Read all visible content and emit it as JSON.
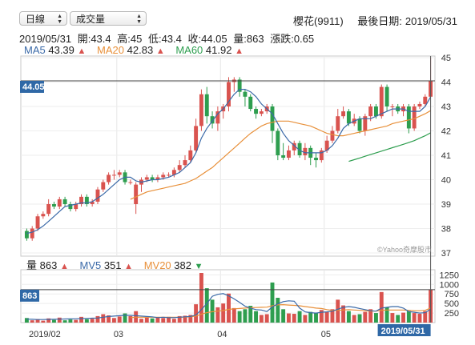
{
  "controls": {
    "period": "日線",
    "indicator": "成交量"
  },
  "header": {
    "stock": "櫻花(9911)",
    "last_date_label": "最後日期:",
    "last_date": "2019/05/31"
  },
  "ohlc": {
    "date": "2019/05/31",
    "open": "開:43.4",
    "high": "高:45",
    "low": "低:43.4",
    "close": "收:44.05",
    "volume": "量:863",
    "change": "漲跌:0.65"
  },
  "ma_legend": [
    {
      "name": "MA5",
      "value": "43.39",
      "color": "#3b6aa8"
    },
    {
      "name": "MA20",
      "value": "42.83",
      "color": "#e8903a"
    },
    {
      "name": "MA60",
      "value": "41.92",
      "color": "#2e9e4f"
    }
  ],
  "vol_legend": {
    "label": "量",
    "value": "863",
    "mv5_name": "MV5",
    "mv5_value": "351",
    "mv20_name": "MV20",
    "mv20_value": "382"
  },
  "watermark": "©Yahoo奇摩股市",
  "current_price_label": "44.05",
  "current_volume_label": "863",
  "cursor_date_label": "2019/05/31",
  "colors": {
    "up": "#d9534f",
    "down": "#2e9e4f",
    "ma5": "#3b6aa8",
    "ma20": "#e8903a",
    "ma60": "#2e9e4f",
    "label_bg": "#2f68a6"
  },
  "chart_data": {
    "type": "candlestick",
    "price_axis": {
      "ticks": [
        "37",
        "38",
        "39",
        "40",
        "41",
        "42",
        "43",
        "44",
        "45"
      ],
      "range": [
        37,
        45
      ]
    },
    "volume_axis": {
      "ticks": [
        "250",
        "500",
        "750",
        "1000",
        "1250"
      ],
      "range": [
        0,
        1300
      ]
    },
    "x_ticks": [
      {
        "label": "2019/02",
        "index": 0
      },
      {
        "label": "03",
        "index": 17
      },
      {
        "label": "04",
        "index": 36
      },
      {
        "label": "05",
        "index": 55
      }
    ],
    "candles": [
      [
        37.9,
        37.6,
        38.0,
        37.5
      ],
      [
        37.6,
        38.0,
        38.1,
        37.5
      ],
      [
        38.0,
        38.5,
        38.6,
        37.9
      ],
      [
        38.5,
        38.6,
        38.7,
        38.4
      ],
      [
        38.6,
        39.0,
        39.2,
        38.5
      ],
      [
        39.0,
        38.9,
        39.1,
        38.8
      ],
      [
        38.9,
        39.2,
        39.3,
        38.8
      ],
      [
        39.2,
        39.0,
        39.3,
        38.9
      ],
      [
        39.0,
        38.8,
        39.1,
        38.7
      ],
      [
        38.8,
        39.0,
        39.1,
        38.7
      ],
      [
        39.0,
        39.3,
        39.4,
        38.9
      ],
      [
        39.3,
        39.0,
        39.4,
        38.9
      ],
      [
        39.0,
        39.1,
        39.2,
        38.9
      ],
      [
        39.1,
        39.6,
        39.7,
        39.0
      ],
      [
        39.6,
        39.9,
        40.0,
        39.5
      ],
      [
        39.9,
        40.2,
        40.3,
        39.8
      ],
      [
        40.2,
        40.2,
        40.4,
        40.0
      ],
      [
        40.2,
        40.3,
        40.4,
        40.1
      ],
      [
        40.3,
        39.9,
        40.4,
        39.8
      ],
      [
        39.9,
        39.9,
        40.0,
        39.8
      ],
      [
        39.0,
        39.8,
        39.9,
        38.6
      ],
      [
        39.8,
        40.0,
        40.1,
        39.5
      ],
      [
        40.0,
        40.1,
        40.2,
        39.9
      ],
      [
        40.1,
        40.0,
        40.2,
        39.9
      ],
      [
        40.0,
        40.1,
        40.2,
        39.9
      ],
      [
        40.1,
        40.2,
        40.3,
        40.0
      ],
      [
        40.2,
        40.2,
        40.3,
        40.1
      ],
      [
        40.2,
        40.4,
        40.5,
        40.1
      ],
      [
        40.4,
        40.6,
        40.8,
        40.3
      ],
      [
        40.6,
        40.8,
        41.0,
        40.5
      ],
      [
        40.8,
        41.2,
        41.4,
        40.7
      ],
      [
        41.2,
        42.2,
        42.5,
        41.1
      ],
      [
        42.2,
        43.5,
        43.7,
        42.0
      ],
      [
        43.5,
        42.6,
        43.8,
        42.3
      ],
      [
        42.6,
        42.3,
        42.8,
        42.1
      ],
      [
        42.3,
        42.8,
        43.0,
        42.0
      ],
      [
        42.8,
        43.0,
        43.1,
        42.5
      ],
      [
        43.0,
        44.0,
        44.2,
        42.8
      ],
      [
        44.0,
        44.1,
        44.2,
        43.6
      ],
      [
        44.1,
        43.6,
        44.2,
        43.4
      ],
      [
        43.6,
        43.4,
        43.7,
        43.0
      ],
      [
        43.4,
        42.9,
        43.5,
        42.8
      ],
      [
        42.9,
        42.7,
        43.0,
        42.5
      ],
      [
        42.7,
        42.8,
        42.9,
        42.6
      ],
      [
        42.8,
        43.0,
        43.1,
        42.7
      ],
      [
        43.0,
        42.0,
        43.1,
        41.5
      ],
      [
        42.0,
        41.0,
        42.1,
        40.8
      ],
      [
        41.0,
        40.9,
        41.5,
        40.8
      ],
      [
        40.9,
        41.2,
        41.4,
        40.8
      ],
      [
        41.2,
        41.5,
        41.6,
        41.0
      ],
      [
        41.5,
        41.0,
        41.6,
        40.9
      ],
      [
        41.0,
        41.3,
        41.5,
        40.8
      ],
      [
        41.3,
        40.9,
        41.4,
        40.6
      ],
      [
        40.9,
        40.8,
        41.1,
        40.5
      ],
      [
        40.8,
        41.2,
        41.3,
        40.7
      ],
      [
        41.2,
        41.6,
        41.8,
        41.1
      ],
      [
        41.6,
        42.0,
        42.2,
        41.5
      ],
      [
        42.0,
        42.6,
        42.9,
        41.9
      ],
      [
        42.6,
        42.8,
        43.0,
        42.5
      ],
      [
        42.8,
        42.3,
        42.9,
        42.2
      ],
      [
        42.3,
        42.5,
        42.7,
        42.2
      ],
      [
        42.5,
        42.0,
        42.6,
        41.9
      ],
      [
        42.0,
        42.6,
        42.7,
        41.8
      ],
      [
        42.6,
        43.0,
        43.1,
        42.4
      ],
      [
        43.0,
        42.6,
        43.1,
        42.5
      ],
      [
        42.6,
        43.8,
        43.9,
        42.5
      ],
      [
        43.8,
        43.0,
        43.9,
        42.8
      ],
      [
        43.0,
        43.0,
        43.1,
        42.6
      ],
      [
        43.0,
        42.8,
        43.1,
        42.7
      ],
      [
        42.8,
        43.0,
        43.1,
        42.6
      ],
      [
        43.0,
        42.1,
        43.1,
        41.9
      ],
      [
        42.1,
        43.0,
        43.1,
        42.0
      ],
      [
        43.0,
        43.1,
        43.2,
        42.9
      ],
      [
        43.1,
        43.4,
        43.5,
        43.0
      ],
      [
        43.4,
        44.05,
        45.0,
        43.4
      ]
    ],
    "volumes": [
      120,
      60,
      90,
      50,
      110,
      70,
      130,
      60,
      80,
      70,
      150,
      90,
      100,
      170,
      220,
      190,
      120,
      160,
      240,
      170,
      300,
      100,
      130,
      110,
      140,
      120,
      150,
      100,
      170,
      180,
      200,
      480,
      1300,
      900,
      600,
      400,
      500,
      760,
      380,
      300,
      350,
      440,
      300,
      200,
      220,
      1050,
      650,
      350,
      240,
      230,
      300,
      200,
      280,
      250,
      330,
      280,
      350,
      600,
      450,
      300,
      200,
      220,
      280,
      350,
      250,
      800,
      400,
      250,
      200,
      260,
      300,
      250,
      230,
      300,
      863
    ],
    "ma5": [
      37.8,
      37.85,
      37.95,
      38.1,
      38.3,
      38.5,
      38.7,
      38.9,
      38.95,
      39.0,
      39.05,
      39.05,
      39.1,
      39.25,
      39.4,
      39.6,
      39.8,
      40.0,
      40.1,
      40.1,
      39.95,
      39.9,
      39.95,
      40.0,
      40.0,
      40.05,
      40.1,
      40.2,
      40.3,
      40.5,
      40.7,
      41.1,
      41.7,
      42.1,
      42.4,
      42.7,
      42.9,
      43.2,
      43.5,
      43.7,
      43.7,
      43.6,
      43.4,
      43.1,
      42.9,
      42.7,
      42.3,
      41.9,
      41.6,
      41.4,
      41.2,
      41.1,
      41.1,
      41.1,
      41.1,
      41.2,
      41.4,
      41.7,
      42.1,
      42.3,
      42.4,
      42.5,
      42.5,
      42.5,
      42.6,
      42.7,
      42.8,
      42.9,
      42.9,
      42.9,
      42.8,
      42.8,
      42.8,
      43.0,
      43.39
    ],
    "ma20": [
      null,
      null,
      null,
      null,
      null,
      null,
      null,
      null,
      null,
      null,
      null,
      null,
      null,
      null,
      null,
      null,
      null,
      null,
      null,
      39.2,
      39.3,
      39.4,
      39.5,
      39.55,
      39.6,
      39.65,
      39.7,
      39.75,
      39.8,
      39.85,
      39.95,
      40.05,
      40.2,
      40.35,
      40.5,
      40.7,
      40.9,
      41.1,
      41.3,
      41.5,
      41.7,
      41.9,
      42.05,
      42.2,
      42.3,
      42.35,
      42.4,
      42.4,
      42.4,
      42.35,
      42.3,
      42.25,
      42.2,
      42.1,
      42.0,
      41.9,
      41.85,
      41.8,
      41.8,
      41.85,
      41.9,
      41.95,
      42.0,
      42.05,
      42.1,
      42.15,
      42.2,
      42.3,
      42.35,
      42.4,
      42.45,
      42.5,
      42.6,
      42.7,
      42.83
    ],
    "ma60": [
      null,
      null,
      null,
      null,
      null,
      null,
      null,
      null,
      null,
      null,
      null,
      null,
      null,
      null,
      null,
      null,
      null,
      null,
      null,
      null,
      null,
      null,
      null,
      null,
      null,
      null,
      null,
      null,
      null,
      null,
      null,
      null,
      null,
      null,
      null,
      null,
      null,
      null,
      null,
      null,
      null,
      null,
      null,
      null,
      null,
      null,
      null,
      null,
      null,
      null,
      null,
      null,
      null,
      null,
      null,
      null,
      null,
      null,
      null,
      40.75,
      40.82,
      40.89,
      40.96,
      41.03,
      41.1,
      41.17,
      41.24,
      41.31,
      41.38,
      41.45,
      41.52,
      41.6,
      41.7,
      41.8,
      41.92
    ],
    "mv5": [
      90,
      85,
      80,
      80,
      84,
      86,
      90,
      94,
      96,
      98,
      104,
      110,
      116,
      120,
      140,
      160,
      170,
      180,
      190,
      190,
      180,
      170,
      160,
      150,
      130,
      140,
      130,
      130,
      140,
      150,
      160,
      200,
      340,
      500,
      690,
      740,
      760,
      700,
      620,
      530,
      430,
      380,
      340,
      330,
      290,
      410,
      490,
      550,
      570,
      560,
      380,
      280,
      260,
      250,
      270,
      280,
      300,
      350,
      400,
      420,
      400,
      370,
      340,
      310,
      300,
      380,
      400,
      420,
      420,
      380,
      290,
      270,
      250,
      260,
      351
    ],
    "mv20": [
      null,
      null,
      null,
      null,
      null,
      null,
      null,
      null,
      null,
      null,
      null,
      null,
      null,
      null,
      null,
      null,
      null,
      null,
      null,
      130,
      140,
      140,
      140,
      140,
      140,
      140,
      140,
      140,
      140,
      145,
      150,
      170,
      220,
      260,
      285,
      300,
      315,
      345,
      360,
      370,
      380,
      390,
      395,
      400,
      405,
      440,
      465,
      470,
      460,
      450,
      440,
      420,
      400,
      380,
      370,
      340,
      320,
      320,
      330,
      340,
      330,
      320,
      310,
      300,
      300,
      320,
      330,
      330,
      330,
      330,
      320,
      310,
      310,
      320,
      382
    ]
  }
}
